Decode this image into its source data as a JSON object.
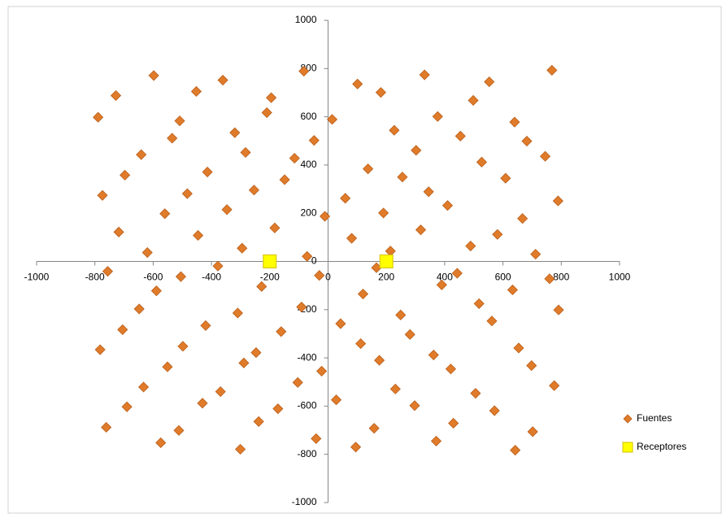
{
  "chart_data": {
    "type": "scatter",
    "xlim": [
      -1000,
      1000
    ],
    "ylim": [
      -1000,
      1000
    ],
    "xticks": [
      -1000,
      -800,
      -600,
      -400,
      -200,
      0,
      200,
      400,
      600,
      800,
      1000
    ],
    "yticks": [
      -1000,
      -800,
      -600,
      -400,
      -200,
      0,
      200,
      400,
      600,
      800,
      1000
    ],
    "legend": "right",
    "series": [
      {
        "name": "Fuentes",
        "color": "#e07b2a",
        "marker": "diamond",
        "x": [
          -761,
          -574,
          -512,
          -301,
          -238,
          -41,
          95,
          158,
          371,
          430,
          642,
          702,
          -690,
          -633,
          -431,
          -369,
          -172,
          -104,
          28,
          231,
          297,
          506,
          571,
          776,
          -782,
          -551,
          -498,
          -289,
          -247,
          -22,
          112,
          176,
          362,
          421,
          654,
          698,
          -705,
          -648,
          -420,
          -310,
          -161,
          -91,
          43,
          249,
          281,
          518,
          562,
          791,
          -756,
          -589,
          -505,
          -378,
          -228,
          -30,
          120,
          166,
          390,
          443,
          633,
          760,
          -718,
          -620,
          -446,
          -295,
          -183,
          -72,
          81,
          214,
          318,
          489,
          581,
          712,
          -774,
          -560,
          -483,
          -347,
          -254,
          -11,
          59,
          190,
          345,
          410,
          667,
          789,
          -697,
          -641,
          -414,
          -283,
          -149,
          -115,
          137,
          255,
          302,
          527,
          609,
          745,
          -789,
          -535,
          -509,
          -320,
          -210,
          -48,
          14,
          227,
          376,
          454,
          640,
          682,
          -728,
          -598,
          -452,
          -361,
          -195,
          -83,
          101,
          181,
          331,
          498,
          553,
          768
        ],
        "values": [
          -688,
          -752,
          -701,
          -779,
          -664,
          -735,
          -770,
          -692,
          -745,
          -671,
          -783,
          -706,
          -603,
          -521,
          -588,
          -540,
          -611,
          -502,
          -574,
          -529,
          -598,
          -547,
          -619,
          -515,
          -366,
          -437,
          -352,
          -421,
          -378,
          -455,
          -341,
          -410,
          -388,
          -446,
          -359,
          -432,
          -283,
          -197,
          -266,
          -214,
          -291,
          -189,
          -258,
          -222,
          -303,
          -175,
          -247,
          -201,
          -41,
          -122,
          -63,
          -19,
          -104,
          -58,
          -135,
          -26,
          -97,
          -49,
          -118,
          -72,
          122,
          37,
          108,
          55,
          139,
          21,
          96,
          43,
          131,
          64,
          112,
          30,
          274,
          198,
          281,
          215,
          296,
          187,
          262,
          201,
          289,
          232,
          178,
          251,
          358,
          443,
          371,
          452,
          339,
          428,
          384,
          350,
          461,
          412,
          345,
          436,
          598,
          511,
          583,
          534,
          617,
          502,
          589,
          544,
          601,
          520,
          578,
          499,
          688,
          771,
          705,
          752,
          679,
          789,
          736,
          701,
          774,
          668,
          745,
          793
        ]
      },
      {
        "name": "Receptores",
        "color": "#ffff00",
        "marker": "square",
        "x": [
          -200,
          200
        ],
        "values": [
          0,
          0
        ]
      }
    ]
  }
}
